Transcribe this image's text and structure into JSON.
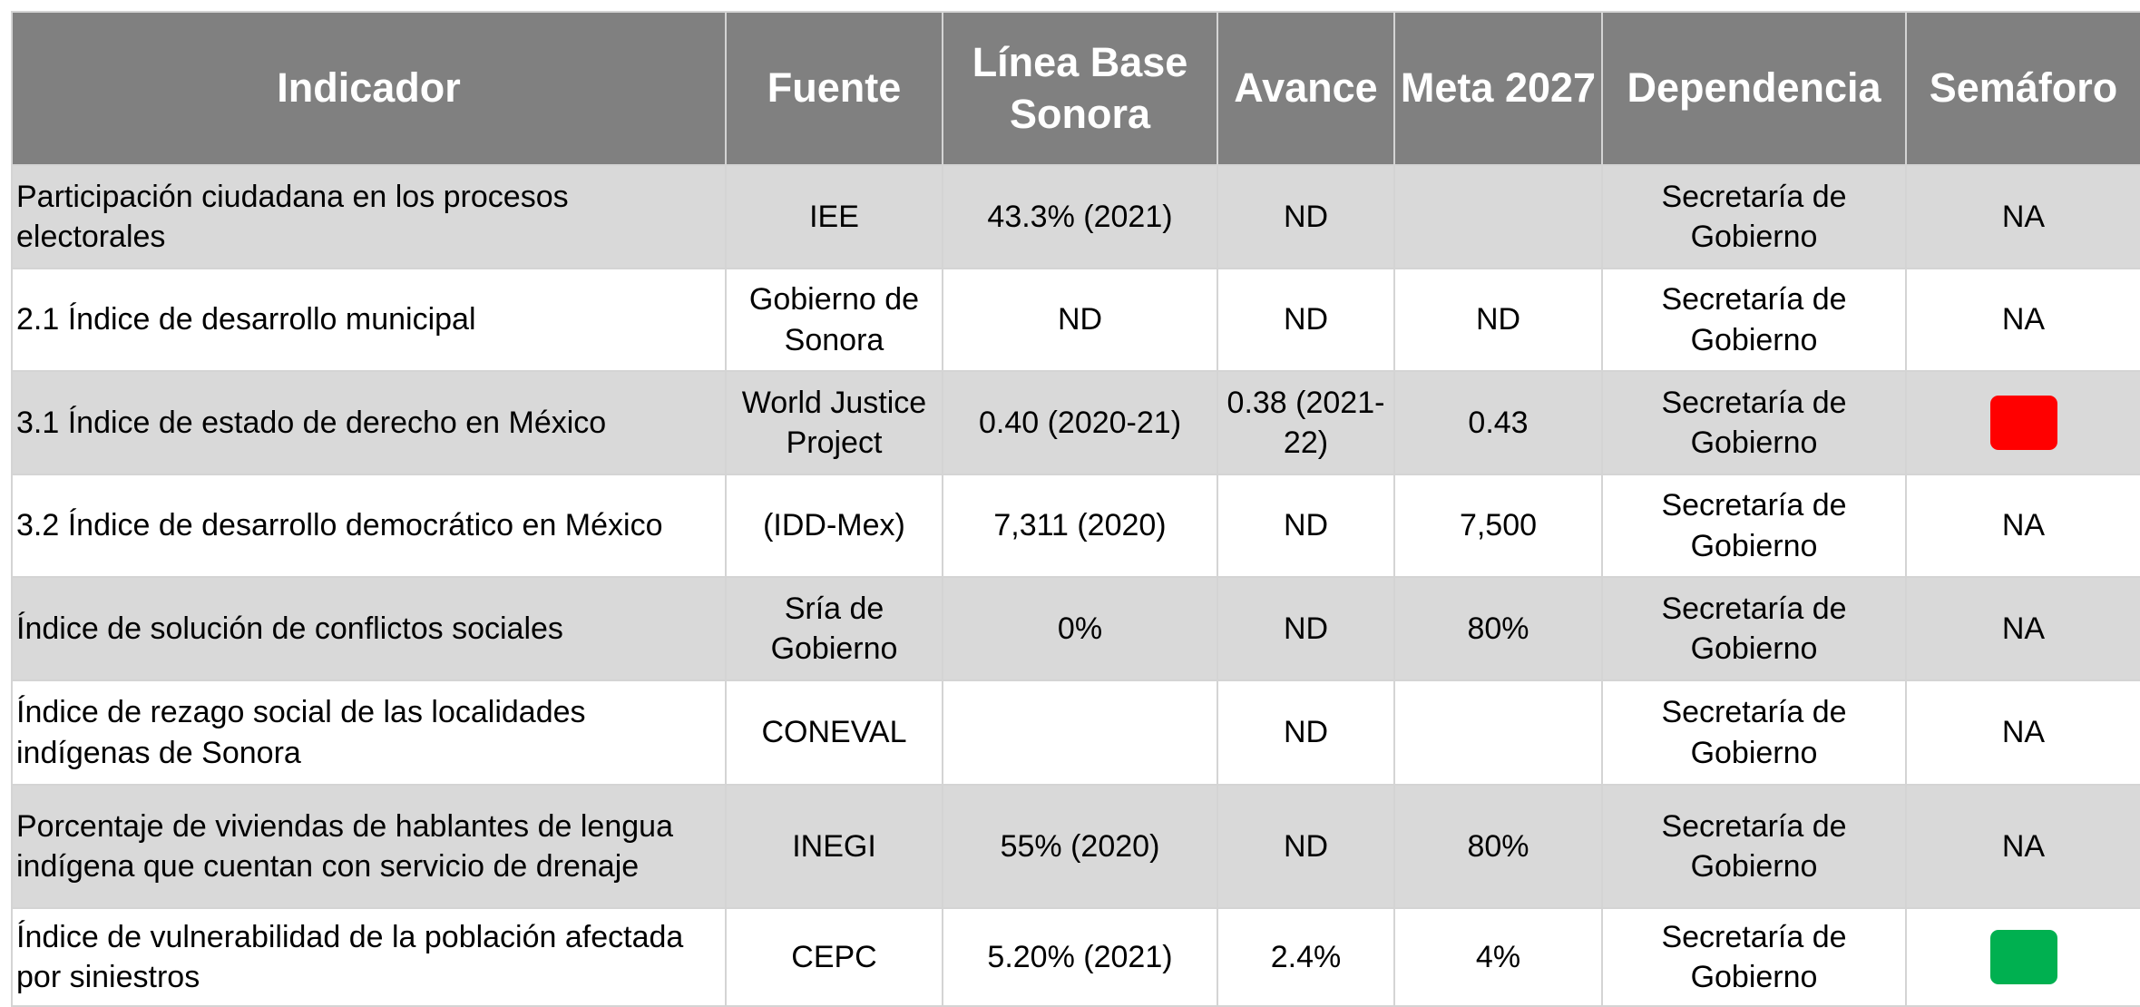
{
  "table": {
    "header": [
      "Indicador",
      "Fuente",
      "Línea Base Sonora",
      "Avance",
      "Meta 2027",
      "Dependencia",
      "Semáforo"
    ],
    "rows": [
      [
        "Participación ciudadana en los procesos electorales",
        "IEE",
        "43.3% (2021)",
        "ND",
        null,
        "Secretaría de Gobierno",
        "NA"
      ],
      [
        "2.1 Índice de desarrollo municipal",
        "Gobierno de Sonora",
        "ND",
        "ND",
        "ND",
        "Secretaría de Gobierno",
        "NA"
      ],
      [
        "3.1 Índice de estado de derecho en México",
        "World Justice Project",
        "0.40 (2020-21)",
        "0.38 (2021-22)",
        "0.43",
        "Secretaría de Gobierno",
        {
          "color": "#ff0000"
        }
      ],
      [
        "3.2 Índice de desarrollo democrático en México",
        "(IDD-Mex)",
        "7,311 (2020)",
        "ND",
        "7,500",
        "Secretaría de Gobierno",
        "NA"
      ],
      [
        "Índice de solución de conflictos sociales",
        "Sría de Gobierno",
        "0%",
        "ND",
        "80%",
        "Secretaría de Gobierno",
        "NA"
      ],
      [
        "Índice de rezago social de las localidades indígenas de Sonora",
        "CONEVAL",
        null,
        "ND",
        null,
        "Secretaría de Gobierno",
        "NA"
      ],
      [
        "Porcentaje de viviendas de hablantes de lengua indígena que cuentan con servicio de drenaje",
        "INEGI",
        "55% (2020)",
        "ND",
        "80%",
        "Secretaría de Gobierno",
        "NA"
      ],
      [
        "Índice de vulnerabilidad de la población afectada por siniestros",
        "CEPC",
        "5.20% (2021)",
        "2.4%",
        "4%",
        "Secretaría de Gobierno",
        {
          "color": "#00b050"
        }
      ]
    ]
  }
}
